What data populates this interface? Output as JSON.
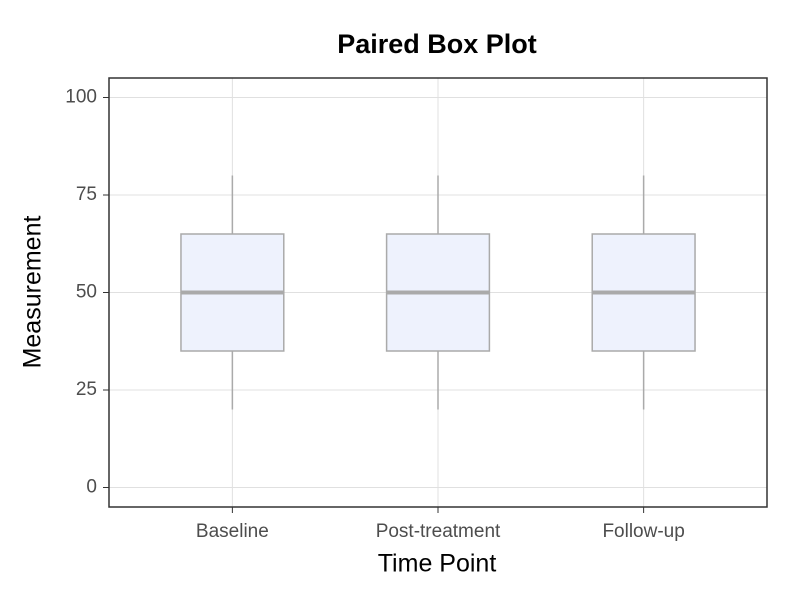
{
  "chart_data": {
    "type": "box",
    "title": "Paired Box Plot",
    "x_label": "Time Point",
    "y_label": "Measurement",
    "categories": [
      "Baseline",
      "Post-treatment",
      "Follow-up"
    ],
    "min": [
      20,
      20,
      20
    ],
    "q1": [
      35,
      35,
      35
    ],
    "median": [
      50,
      50,
      50
    ],
    "q3": [
      65,
      65,
      65
    ],
    "max": [
      80,
      80,
      80
    ],
    "color": "#eef2fd",
    "edge_color": "#aaaaaa",
    "ylim": [
      -5,
      105
    ],
    "yticks": [
      0,
      25,
      50,
      75,
      100
    ],
    "grid": true
  }
}
